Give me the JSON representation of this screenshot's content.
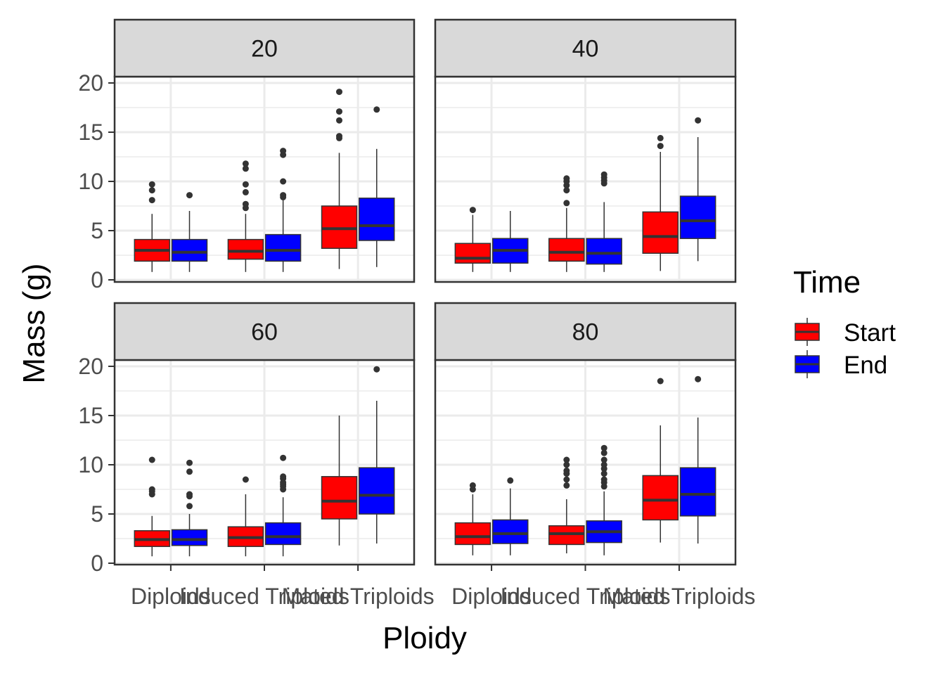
{
  "chart_data": {
    "type": "boxplot",
    "xlabel": "Ploidy",
    "ylabel": "Mass (g)",
    "ylim": [
      -1,
      27
    ],
    "yticks": [
      0,
      5,
      10,
      15,
      20
    ],
    "categories": [
      "Diploids",
      "Induced Triploids",
      "Mated Triploids"
    ],
    "legend": {
      "title": "Time",
      "placement": "right",
      "entries": [
        {
          "name": "Start",
          "color": "#ff0000"
        },
        {
          "name": "End",
          "color": "#0000ff"
        }
      ]
    },
    "panels": [
      {
        "label": "20",
        "boxes": [
          {
            "category": "Diploids",
            "series": "Start",
            "whisker_low": 0.8,
            "q1": 1.9,
            "median": 3.0,
            "q3": 4.1,
            "whisker_high": 6.7,
            "outliers": [
              8.1,
              9.1,
              9.7
            ]
          },
          {
            "category": "Diploids",
            "series": "End",
            "whisker_low": 0.8,
            "q1": 1.9,
            "median": 2.8,
            "q3": 4.1,
            "whisker_high": 7.0,
            "outliers": [
              8.6
            ]
          },
          {
            "category": "Induced Triploids",
            "series": "Start",
            "whisker_low": 0.8,
            "q1": 2.1,
            "median": 2.9,
            "q3": 4.1,
            "whisker_high": 6.7,
            "outliers": [
              7.3,
              7.7,
              8.9,
              9.7,
              11.3,
              11.8
            ]
          },
          {
            "category": "Induced Triploids",
            "series": "End",
            "whisker_low": 0.8,
            "q1": 1.9,
            "median": 3.0,
            "q3": 4.6,
            "whisker_high": 8.1,
            "outliers": [
              8.4,
              8.6,
              10.0,
              12.7,
              13.1
            ]
          },
          {
            "category": "Mated Triploids",
            "series": "Start",
            "whisker_low": 1.1,
            "q1": 3.2,
            "median": 5.2,
            "q3": 7.5,
            "whisker_high": 12.9,
            "outliers": [
              14.4,
              14.6,
              16.2,
              17.1,
              19.1
            ]
          },
          {
            "category": "Mated Triploids",
            "series": "End",
            "whisker_low": 1.3,
            "q1": 4.0,
            "median": 5.5,
            "q3": 8.3,
            "whisker_high": 13.3,
            "outliers": [
              17.3
            ]
          }
        ]
      },
      {
        "label": "40",
        "boxes": [
          {
            "category": "Diploids",
            "series": "Start",
            "whisker_low": 0.8,
            "q1": 1.7,
            "median": 2.2,
            "q3": 3.7,
            "whisker_high": 6.6,
            "outliers": [
              7.1
            ]
          },
          {
            "category": "Diploids",
            "series": "End",
            "whisker_low": 0.8,
            "q1": 1.7,
            "median": 3.0,
            "q3": 4.2,
            "whisker_high": 7.0,
            "outliers": []
          },
          {
            "category": "Induced Triploids",
            "series": "Start",
            "whisker_low": 0.8,
            "q1": 1.9,
            "median": 2.8,
            "q3": 4.2,
            "whisker_high": 7.3,
            "outliers": [
              7.8,
              9.1,
              9.6,
              10.0,
              10.3
            ]
          },
          {
            "category": "Induced Triploids",
            "series": "End",
            "whisker_low": 0.8,
            "q1": 1.6,
            "median": 2.7,
            "q3": 4.2,
            "whisker_high": 7.9,
            "outliers": [
              9.8,
              10.1,
              10.4,
              10.7
            ]
          },
          {
            "category": "Mated Triploids",
            "series": "Start",
            "whisker_low": 0.9,
            "q1": 2.7,
            "median": 4.4,
            "q3": 6.9,
            "whisker_high": 13.0,
            "outliers": [
              13.6,
              14.4
            ]
          },
          {
            "category": "Mated Triploids",
            "series": "End",
            "whisker_low": 1.9,
            "q1": 4.2,
            "median": 6.0,
            "q3": 8.5,
            "whisker_high": 14.5,
            "outliers": [
              16.2
            ]
          }
        ]
      },
      {
        "label": "60",
        "boxes": [
          {
            "category": "Diploids",
            "series": "Start",
            "whisker_low": 0.7,
            "q1": 1.7,
            "median": 2.4,
            "q3": 3.3,
            "whisker_high": 4.8,
            "outliers": [
              7.0,
              7.3,
              7.5,
              10.5
            ]
          },
          {
            "category": "Diploids",
            "series": "End",
            "whisker_low": 0.7,
            "q1": 1.8,
            "median": 2.4,
            "q3": 3.4,
            "whisker_high": 5.0,
            "outliers": [
              5.8,
              6.8,
              7.0,
              9.3,
              10.2
            ]
          },
          {
            "category": "Induced Triploids",
            "series": "Start",
            "whisker_low": 0.7,
            "q1": 1.7,
            "median": 2.6,
            "q3": 3.7,
            "whisker_high": 7.0,
            "outliers": [
              8.5
            ]
          },
          {
            "category": "Induced Triploids",
            "series": "End",
            "whisker_low": 0.7,
            "q1": 1.9,
            "median": 2.7,
            "q3": 4.1,
            "whisker_high": 6.7,
            "outliers": [
              7.5,
              7.8,
              8.0,
              8.2,
              8.6,
              8.8,
              10.7
            ]
          },
          {
            "category": "Mated Triploids",
            "series": "Start",
            "whisker_low": 1.8,
            "q1": 4.5,
            "median": 6.3,
            "q3": 8.8,
            "whisker_high": 15.0,
            "outliers": []
          },
          {
            "category": "Mated Triploids",
            "series": "End",
            "whisker_low": 2.0,
            "q1": 5.0,
            "median": 6.9,
            "q3": 9.7,
            "whisker_high": 16.5,
            "outliers": [
              19.7
            ]
          }
        ]
      },
      {
        "label": "80",
        "boxes": [
          {
            "category": "Diploids",
            "series": "Start",
            "whisker_low": 0.8,
            "q1": 1.9,
            "median": 2.7,
            "q3": 4.1,
            "whisker_high": 7.0,
            "outliers": [
              7.5,
              7.9
            ]
          },
          {
            "category": "Diploids",
            "series": "End",
            "whisker_low": 0.8,
            "q1": 2.0,
            "median": 3.0,
            "q3": 4.4,
            "whisker_high": 7.6,
            "outliers": [
              8.4
            ]
          },
          {
            "category": "Induced Triploids",
            "series": "Start",
            "whisker_low": 1.0,
            "q1": 1.9,
            "median": 3.0,
            "q3": 3.8,
            "whisker_high": 6.5,
            "outliers": [
              7.9,
              8.5,
              9.1,
              9.4,
              10.0,
              10.5
            ]
          },
          {
            "category": "Induced Triploids",
            "series": "End",
            "whisker_low": 0.8,
            "q1": 2.1,
            "median": 3.2,
            "q3": 4.3,
            "whisker_high": 7.3,
            "outliers": [
              7.8,
              8.2,
              8.5,
              9.1,
              9.6,
              10.0,
              10.5,
              11.2,
              11.7
            ]
          },
          {
            "category": "Mated Triploids",
            "series": "Start",
            "whisker_low": 2.1,
            "q1": 4.4,
            "median": 6.4,
            "q3": 8.9,
            "whisker_high": 14.0,
            "outliers": [
              18.5
            ]
          },
          {
            "category": "Mated Triploids",
            "series": "End",
            "whisker_low": 2.0,
            "q1": 4.8,
            "median": 7.0,
            "q3": 9.7,
            "whisker_high": 14.8,
            "outliers": [
              18.7
            ]
          }
        ]
      }
    ]
  }
}
